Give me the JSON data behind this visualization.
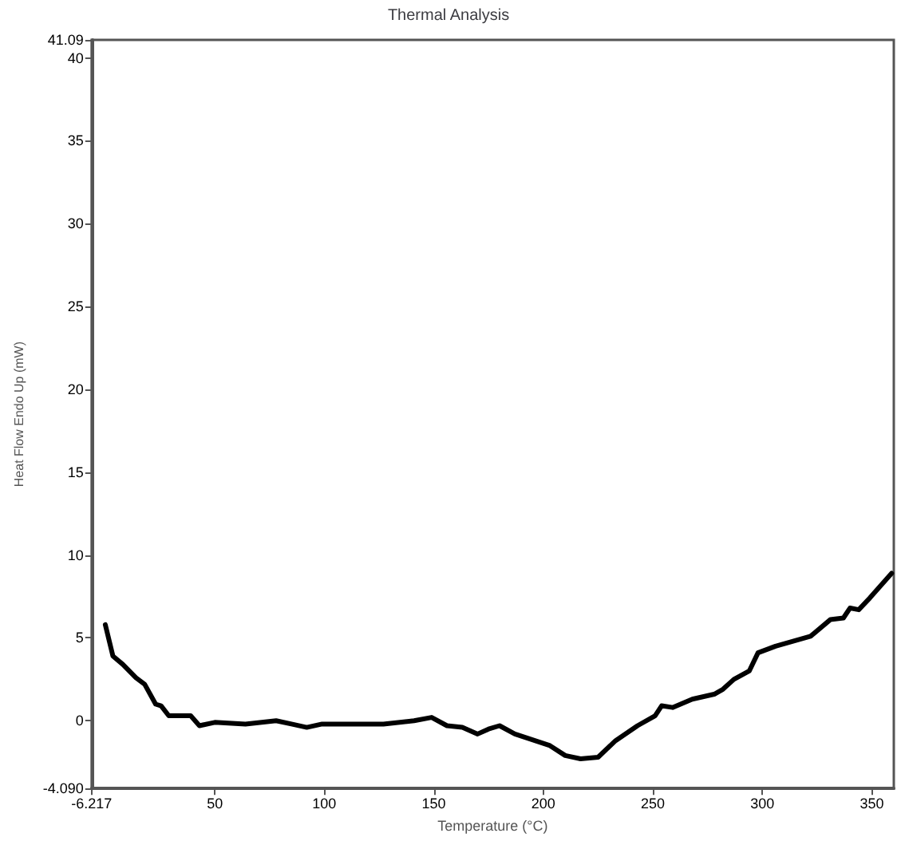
{
  "chart_data": {
    "type": "line",
    "title": "Thermal Analysis",
    "xlabel": "Temperature (°C)",
    "ylabel": "Heat Flow Endo Up (mW)",
    "xlim": [
      -6.217,
      360
    ],
    "ylim": [
      -4.09,
      41.09
    ],
    "xticks": [
      {
        "value": -6.217,
        "label": "-6.217"
      },
      50,
      100,
      150,
      200,
      250,
      300,
      350
    ],
    "yticks": [
      {
        "value": -4.09,
        "label": "-4.090"
      },
      0,
      5,
      10,
      15,
      20,
      25,
      30,
      35,
      40,
      {
        "value": 41.09,
        "label": "41.09"
      }
    ],
    "grid": false,
    "marker": "none",
    "line_style": "solid",
    "series": [
      {
        "color": "#000000",
        "x": [
          0,
          3.5,
          8,
          14,
          18,
          23,
          25.5,
          29,
          39,
          43,
          50,
          64,
          78,
          85,
          92,
          99,
          127,
          141,
          149,
          156,
          163,
          170,
          175,
          180,
          187,
          203,
          210,
          217,
          225,
          233,
          243,
          251,
          254,
          259,
          268,
          278,
          282,
          287,
          294,
          298,
          306,
          322,
          331,
          337,
          340,
          344,
          349,
          359
        ],
        "values": [
          5.8,
          3.9,
          3.4,
          2.6,
          2.2,
          1.0,
          0.9,
          0.3,
          0.3,
          -0.3,
          -0.1,
          -0.2,
          0,
          -0.2,
          -0.4,
          -0.2,
          -0.2,
          0,
          0.2,
          -0.3,
          -0.4,
          -0.8,
          -0.5,
          -0.3,
          -0.8,
          -1.5,
          -2.1,
          -2.3,
          -2.2,
          -1.2,
          -0.3,
          0.3,
          0.9,
          0.8,
          1.3,
          1.6,
          1.9,
          2.5,
          3.0,
          4.1,
          4.5,
          5.1,
          6.1,
          6.2,
          6.8,
          6.7,
          7.4,
          8.9
        ]
      }
    ]
  }
}
